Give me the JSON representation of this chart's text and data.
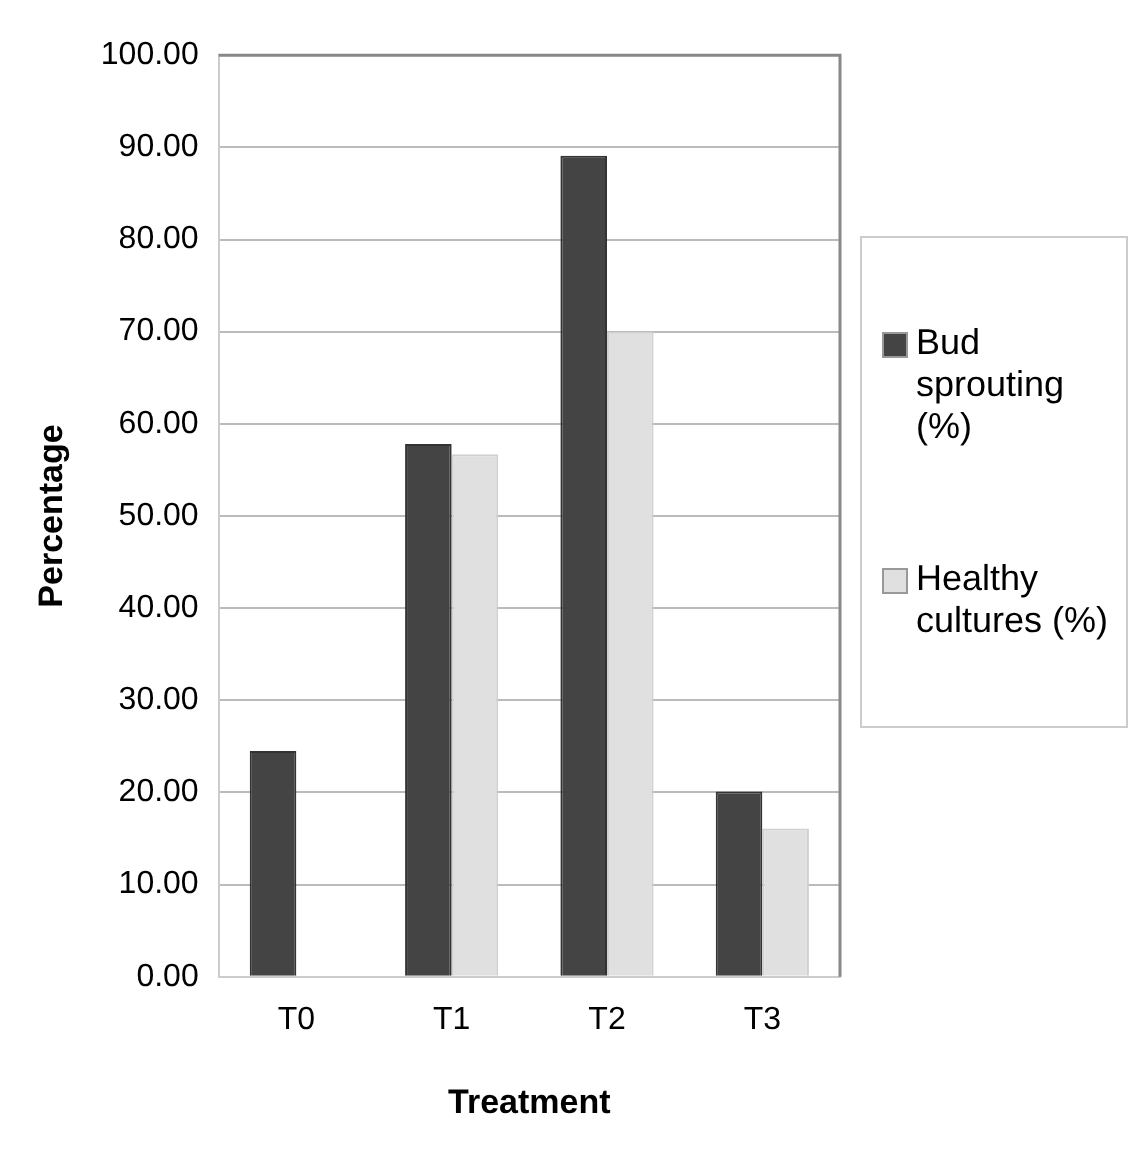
{
  "chart_data": {
    "type": "bar",
    "xlabel": "Treatment",
    "ylabel": "Percentage",
    "categories": [
      "T0",
      "T1",
      "T2",
      "T3"
    ],
    "series": [
      {
        "name": "Bud sprouting (%)",
        "color": "#444444",
        "values": [
          24.5,
          57.8,
          89.1,
          20.1
        ]
      },
      {
        "name": "Healthy cultures (%)",
        "color": "#e0e0e0",
        "values": [
          0,
          56.7,
          70.0,
          16.1
        ]
      }
    ],
    "ylim": [
      0,
      100
    ],
    "yticks": [
      {
        "value": 0,
        "label": "0.00"
      },
      {
        "value": 10,
        "label": "10.00"
      },
      {
        "value": 20,
        "label": "20.00"
      },
      {
        "value": 30,
        "label": "30.00"
      },
      {
        "value": 40,
        "label": "40.00"
      },
      {
        "value": 50,
        "label": "50.00"
      },
      {
        "value": 60,
        "label": "60.00"
      },
      {
        "value": 70,
        "label": "70.00"
      },
      {
        "value": 80,
        "label": "80.00"
      },
      {
        "value": 90,
        "label": "90.00"
      },
      {
        "value": 100,
        "label": "100.00"
      }
    ],
    "grid": "y",
    "legend": "right"
  }
}
